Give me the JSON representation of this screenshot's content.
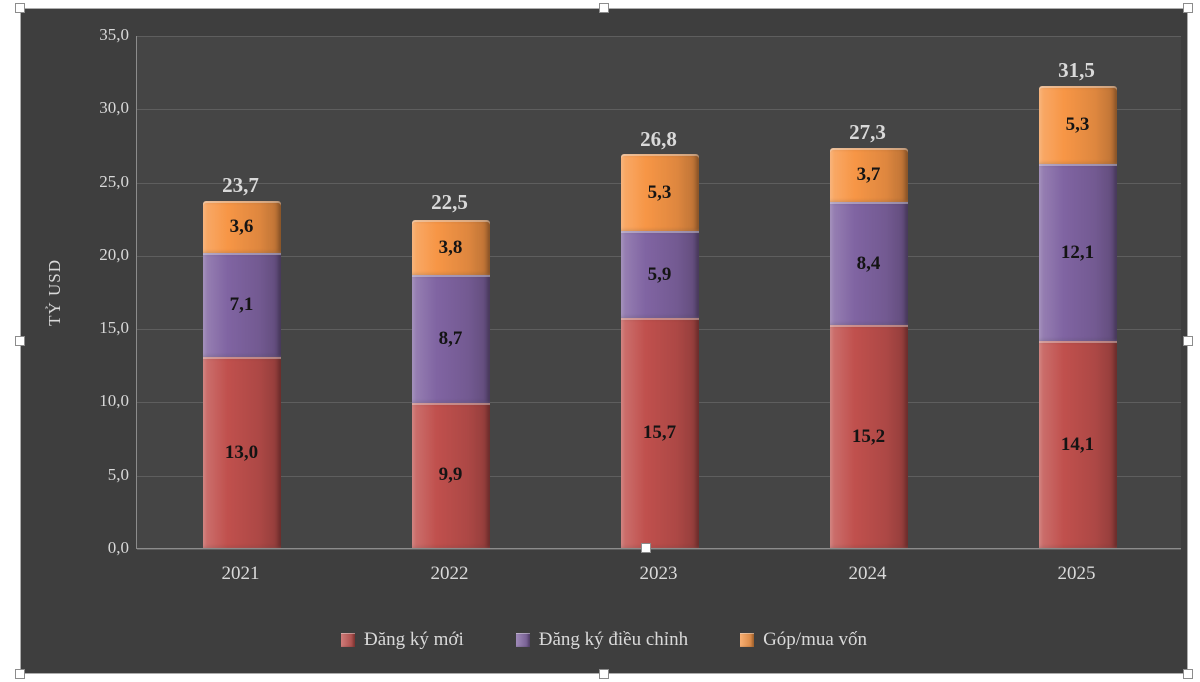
{
  "chart_data": {
    "type": "bar",
    "stacked": true,
    "title": "",
    "xlabel": "",
    "ylabel": "TỶ USD",
    "categories": [
      "2021",
      "2022",
      "2023",
      "2024",
      "2025"
    ],
    "series": [
      {
        "name": "Đăng ký mới",
        "color": "#C0504D",
        "values": [
          13.0,
          9.9,
          15.7,
          15.2,
          14.1
        ],
        "value_labels": [
          "13,0",
          "9,9",
          "15,7",
          "15,2",
          "14,1"
        ]
      },
      {
        "name": "Đăng ký điều chỉnh",
        "color": "#8064A2",
        "values": [
          7.1,
          8.7,
          5.9,
          8.4,
          12.1
        ],
        "value_labels": [
          "7,1",
          "8,7",
          "5,9",
          "8,4",
          "12,1"
        ]
      },
      {
        "name": "Góp/mua vốn",
        "color": "#F79646",
        "values": [
          3.6,
          3.8,
          5.3,
          3.7,
          5.3
        ],
        "value_labels": [
          "3,6",
          "3,8",
          "5,3",
          "3,7",
          "5,3"
        ]
      }
    ],
    "totals": [
      23.7,
      22.5,
      26.8,
      27.3,
      31.5
    ],
    "total_labels": [
      "23,7",
      "22,5",
      "26,8",
      "27,3",
      "31,5"
    ],
    "ylim": [
      0,
      35
    ],
    "y_tick_step": 5,
    "y_tick_labels": [
      "0,0",
      "5,0",
      "10,0",
      "15,0",
      "20,0",
      "25,0",
      "30,0",
      "35,0"
    ],
    "grid": true,
    "legend_position": "bottom",
    "colors": {
      "chart_background": "#3E3E3E",
      "plot_background": "#454545",
      "gridline": "#5E5E5E",
      "axis_text": "#D9D9D9",
      "segment_label_text": "#141414"
    }
  }
}
